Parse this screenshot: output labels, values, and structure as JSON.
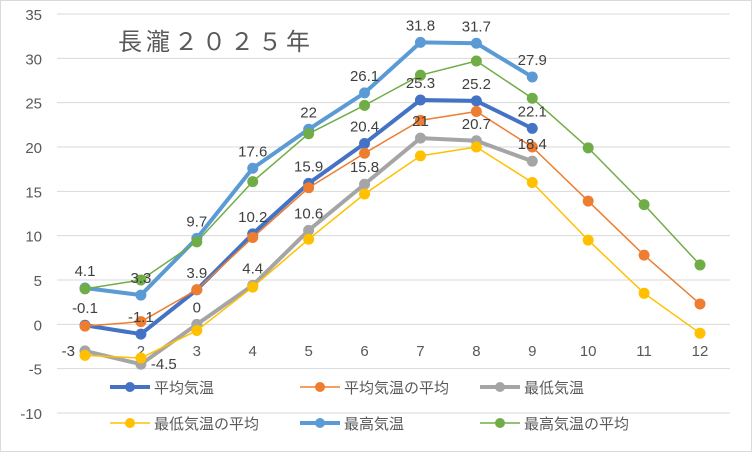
{
  "chart_data": {
    "type": "line",
    "title": "長瀧２０２５年",
    "xlabel": "",
    "ylabel": "",
    "categories": [
      "1",
      "2",
      "3",
      "4",
      "5",
      "6",
      "7",
      "8",
      "9",
      "10",
      "11",
      "12"
    ],
    "ylim": [
      -10,
      35
    ],
    "yticks": [
      "-10",
      "-5",
      "0",
      "5",
      "10",
      "15",
      "20",
      "25",
      "30",
      "35"
    ],
    "grid": true,
    "legend": "bottom",
    "series": [
      {
        "name": "平均気温",
        "color": "#4472c4",
        "width": 4,
        "values": [
          -0.1,
          -1.1,
          3.9,
          10.2,
          15.9,
          20.4,
          25.3,
          25.2,
          22.1,
          null,
          null,
          null
        ],
        "labels": true
      },
      {
        "name": "平均気温の平均",
        "color": "#ed7d31",
        "width": 1.5,
        "values": [
          -0.2,
          0.3,
          3.9,
          9.8,
          15.4,
          19.3,
          23.0,
          24.0,
          20.0,
          13.9,
          7.8,
          2.3
        ],
        "labels": false
      },
      {
        "name": "最低気温",
        "color": "#a5a5a5",
        "width": 4,
        "values": [
          -3,
          -4.5,
          0,
          4.4,
          10.6,
          15.8,
          21,
          20.7,
          18.4,
          null,
          null,
          null
        ],
        "labels": true
      },
      {
        "name": "最低気温の平均",
        "color": "#ffc000",
        "width": 1.5,
        "values": [
          -3.5,
          -3.8,
          -0.7,
          4.2,
          9.6,
          14.7,
          19.0,
          20.0,
          16.0,
          9.5,
          3.5,
          -1.0
        ],
        "labels": false
      },
      {
        "name": "最高気温",
        "color": "#5b9bd5",
        "width": 4,
        "values": [
          4.1,
          3.3,
          9.7,
          17.6,
          22,
          26.1,
          31.8,
          31.7,
          27.9,
          null,
          null,
          null
        ],
        "labels": true
      },
      {
        "name": "最高気温の平均",
        "color": "#70ad47",
        "width": 1.5,
        "values": [
          4.0,
          5.0,
          9.3,
          16.1,
          21.5,
          24.7,
          28.1,
          29.7,
          25.5,
          19.9,
          13.5,
          6.7
        ],
        "labels": false
      }
    ]
  }
}
